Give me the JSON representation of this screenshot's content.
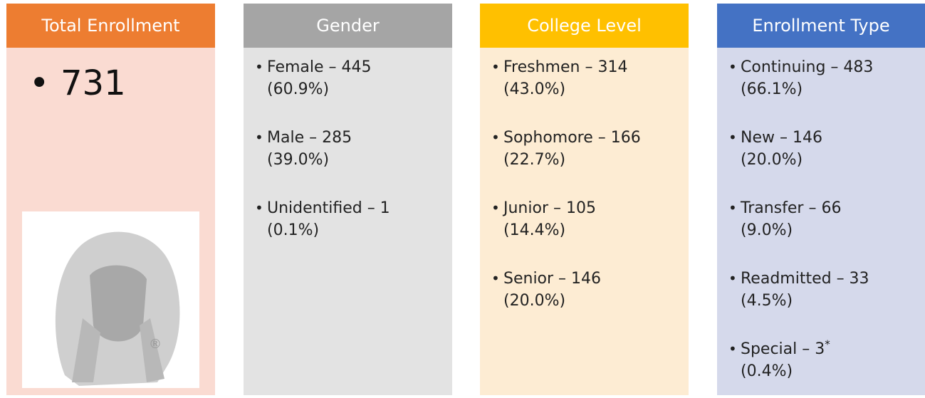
{
  "total": {
    "title": "Total Enrollment",
    "value": "731"
  },
  "logo_mark": "®",
  "breakdowns": [
    {
      "title": "Gender",
      "items": [
        {
          "text": "Female – 445",
          "pct": "(60.9%)"
        },
        {
          "text": "Male – 285",
          "pct": "(39.0%)"
        },
        {
          "text": "Unidentified – 1",
          "pct": "(0.1%)"
        }
      ]
    },
    {
      "title": "College Level",
      "items": [
        {
          "text": "Freshmen – 314",
          "pct": "(43.0%)"
        },
        {
          "text": "Sophomore – 166",
          "pct": "(22.7%)"
        },
        {
          "text": "Junior – 105",
          "pct": "(14.4%)"
        },
        {
          "text": "Senior – 146",
          "pct": "(20.0%)"
        }
      ]
    },
    {
      "title": "Enrollment Type",
      "items": [
        {
          "text": "Continuing – 483",
          "pct": "(66.1%)"
        },
        {
          "text": "New – 146",
          "pct": "(20.0%)"
        },
        {
          "text": "Transfer – 66",
          "pct": "(9.0%)"
        },
        {
          "text": "Readmitted – 33",
          "pct": "(4.5%)"
        },
        {
          "text": "Special – 3",
          "sup": "*",
          "pct": "(0.4%)"
        }
      ]
    }
  ]
}
